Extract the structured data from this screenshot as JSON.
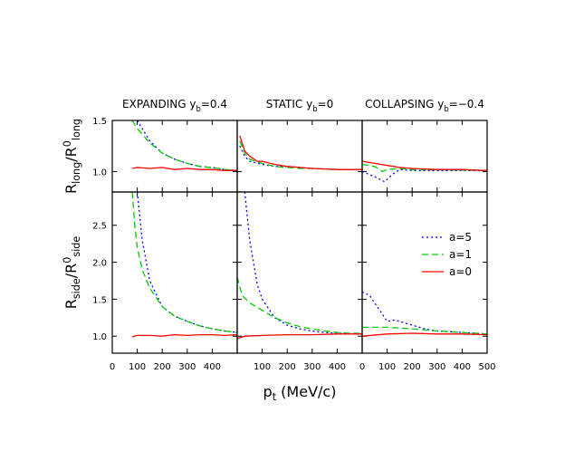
{
  "chart_data": [
    {
      "type": "line",
      "title": [
        {
          "text": "EXPANDING y"
        },
        {
          "sub": "b"
        },
        {
          "text": "=0.4"
        }
      ],
      "ylabel": [
        {
          "text": "R"
        },
        {
          "sub": "long"
        },
        {
          "text": "/R"
        },
        {
          "sup": "0"
        },
        {
          "sub": "long"
        }
      ],
      "xlim": [
        0,
        500
      ],
      "xticks": [
        0,
        100,
        200,
        300,
        400,
        500
      ],
      "xtick_labels": false,
      "ylim": [
        0.8,
        1.5
      ],
      "yticks": [
        {
          "value": 1,
          "label": "1.0"
        },
        {
          "value": 1.5,
          "label": "1.5"
        }
      ],
      "ytick_labels": true,
      "series": [
        {
          "color": "#0000ff",
          "style": "dotted",
          "x": [
            100,
            150,
            200,
            250,
            300,
            350,
            400,
            450,
            500
          ],
          "values": [
            1.5,
            1.3,
            1.18,
            1.12,
            1.08,
            1.05,
            1.04,
            1.02,
            1.01
          ]
        },
        {
          "color": "#00cc00",
          "style": "dashed",
          "x": [
            80,
            100,
            150,
            200,
            250,
            300,
            350,
            400,
            450,
            500
          ],
          "values": [
            1.5,
            1.42,
            1.28,
            1.18,
            1.12,
            1.08,
            1.05,
            1.04,
            1.02,
            1.01
          ]
        },
        {
          "color": "#ff0000",
          "style": "solid",
          "x": [
            80,
            100,
            150,
            200,
            250,
            300,
            350,
            400,
            450,
            500
          ],
          "values": [
            1.03,
            1.04,
            1.03,
            1.04,
            1.02,
            1.03,
            1.02,
            1.02,
            1.01,
            1.01
          ]
        }
      ]
    },
    {
      "type": "line",
      "title": [
        {
          "text": "STATIC y"
        },
        {
          "sub": "b"
        },
        {
          "text": "=0"
        }
      ],
      "xlim": [
        0,
        500
      ],
      "xticks": [
        0,
        100,
        200,
        300,
        400,
        500
      ],
      "xtick_labels": false,
      "ylim": [
        0.8,
        1.5
      ],
      "yticks": [
        1,
        1.5
      ],
      "ytick_labels": false,
      "series": [
        {
          "color": "#0000ff",
          "style": "dotted",
          "x": [
            10,
            30,
            50,
            100,
            150,
            200,
            250,
            300,
            400,
            500
          ],
          "values": [
            1.25,
            1.15,
            1.1,
            1.07,
            1.05,
            1.05,
            1.04,
            1.03,
            1.02,
            1.02
          ]
        },
        {
          "color": "#00cc00",
          "style": "dashed",
          "x": [
            10,
            30,
            50,
            100,
            150,
            200,
            250,
            300,
            400,
            500
          ],
          "values": [
            1.3,
            1.18,
            1.12,
            1.08,
            1.05,
            1.04,
            1.03,
            1.03,
            1.02,
            1.02
          ]
        },
        {
          "color": "#ff0000",
          "style": "solid",
          "x": [
            10,
            30,
            50,
            80,
            100,
            150,
            200,
            250,
            300,
            400,
            500
          ],
          "values": [
            1.35,
            1.2,
            1.15,
            1.1,
            1.1,
            1.07,
            1.05,
            1.04,
            1.03,
            1.02,
            1.02
          ]
        }
      ]
    },
    {
      "type": "line",
      "title": [
        {
          "text": "COLLAPSING y"
        },
        {
          "sub": "b"
        },
        {
          "text": "=−0.4"
        }
      ],
      "xlim": [
        0,
        500
      ],
      "xticks": [
        0,
        100,
        200,
        300,
        400,
        500
      ],
      "xtick_labels": false,
      "ylim": [
        0.8,
        1.5
      ],
      "yticks": [
        1,
        1.5
      ],
      "ytick_labels": false,
      "series": [
        {
          "color": "#0000ff",
          "style": "dotted",
          "x": [
            0,
            50,
            90,
            120,
            150,
            200,
            300,
            500
          ],
          "values": [
            1.0,
            0.95,
            0.9,
            0.97,
            1.02,
            1.01,
            1.01,
            1.01
          ]
        },
        {
          "color": "#00cc00",
          "style": "dashed",
          "x": [
            0,
            50,
            80,
            100,
            150,
            200,
            250,
            500
          ],
          "values": [
            1.07,
            1.05,
            1.0,
            1.02,
            1.03,
            1.02,
            1.02,
            1.01
          ]
        },
        {
          "color": "#ff0000",
          "style": "solid",
          "x": [
            0,
            50,
            100,
            150,
            200,
            300,
            400,
            500
          ],
          "values": [
            1.1,
            1.08,
            1.06,
            1.04,
            1.03,
            1.02,
            1.02,
            1.01
          ]
        }
      ]
    },
    {
      "type": "line",
      "ylabel": [
        {
          "text": "R"
        },
        {
          "sub": "side"
        },
        {
          "text": "/R"
        },
        {
          "sup": "0"
        },
        {
          "sub": "side"
        }
      ],
      "xlim": [
        0,
        500
      ],
      "xticks": [
        0,
        100,
        200,
        300,
        400
      ],
      "xtick_labels": true,
      "ylim": [
        0.77,
        2.95
      ],
      "yticks": [
        {
          "value": 1,
          "label": "1.0"
        },
        {
          "value": 1.5,
          "label": "1.5"
        },
        {
          "value": 2,
          "label": "2.0"
        },
        {
          "value": 2.5,
          "label": "2.5"
        }
      ],
      "ytick_labels": true,
      "series": [
        {
          "color": "#0000ff",
          "style": "dotted",
          "x": [
            100,
            120,
            150,
            200,
            250,
            300,
            350,
            400,
            450,
            500
          ],
          "values": [
            2.95,
            2.3,
            1.75,
            1.4,
            1.27,
            1.2,
            1.14,
            1.1,
            1.07,
            1.05
          ]
        },
        {
          "color": "#00cc00",
          "style": "dashed",
          "x": [
            80,
            90,
            100,
            120,
            150,
            200,
            250,
            300,
            350,
            400,
            450,
            500
          ],
          "values": [
            2.95,
            2.5,
            2.2,
            1.9,
            1.65,
            1.4,
            1.27,
            1.2,
            1.14,
            1.1,
            1.07,
            1.05
          ]
        },
        {
          "color": "#ff0000",
          "style": "solid",
          "x": [
            80,
            100,
            150,
            200,
            250,
            300,
            350,
            400,
            450,
            500
          ],
          "values": [
            0.99,
            1.01,
            1.01,
            1.0,
            1.02,
            1.01,
            1.02,
            1.02,
            1.01,
            1.02
          ]
        }
      ]
    },
    {
      "type": "line",
      "xlabel": [
        {
          "text": "p"
        },
        {
          "sub": "t"
        },
        {
          "text": " (MeV/c)"
        }
      ],
      "xlim": [
        0,
        500
      ],
      "xticks": [
        100,
        200,
        300,
        400
      ],
      "xtick_labels": true,
      "ylim": [
        0.77,
        2.95
      ],
      "yticks": [
        1,
        1.5,
        2,
        2.5
      ],
      "ytick_labels": false,
      "series": [
        {
          "color": "#0000ff",
          "style": "dotted",
          "x": [
            30,
            50,
            80,
            100,
            150,
            200,
            250,
            300,
            350,
            400,
            500
          ],
          "values": [
            2.95,
            2.3,
            1.7,
            1.5,
            1.25,
            1.15,
            1.1,
            1.07,
            1.05,
            1.04,
            1.03
          ]
        },
        {
          "color": "#00cc00",
          "style": "dashed",
          "x": [
            0,
            20,
            50,
            100,
            150,
            200,
            250,
            300,
            350,
            400,
            450,
            500
          ],
          "values": [
            1.8,
            1.55,
            1.45,
            1.35,
            1.25,
            1.18,
            1.13,
            1.1,
            1.07,
            1.05,
            1.04,
            1.04
          ]
        },
        {
          "color": "#ff0000",
          "style": "solid",
          "x": [
            0,
            30,
            100,
            200,
            300,
            400,
            500
          ],
          "values": [
            0.97,
            1.0,
            1.01,
            1.02,
            1.02,
            1.03,
            1.03
          ]
        }
      ]
    },
    {
      "type": "line",
      "xlim": [
        0,
        500
      ],
      "xticks": [
        0,
        100,
        200,
        300,
        400,
        500
      ],
      "xtick_labels": true,
      "ylim": [
        0.77,
        2.95
      ],
      "yticks": [
        1,
        1.5,
        2,
        2.5
      ],
      "ytick_labels": false,
      "legend": "upper right",
      "series": [
        {
          "name": "a=5",
          "color": "#0000ff",
          "style": "dotted",
          "x": [
            0,
            30,
            100,
            130,
            200,
            250,
            300,
            400,
            500
          ],
          "values": [
            1.6,
            1.55,
            1.2,
            1.22,
            1.15,
            1.1,
            1.07,
            1.05,
            1.03
          ]
        },
        {
          "name": "a=1",
          "color": "#00cc00",
          "style": "dashed",
          "x": [
            0,
            100,
            200,
            300,
            400,
            500
          ],
          "values": [
            1.12,
            1.12,
            1.1,
            1.07,
            1.05,
            1.03
          ]
        },
        {
          "name": "a=0",
          "color": "#ff0000",
          "style": "solid",
          "x": [
            0,
            100,
            200,
            300,
            400,
            500
          ],
          "values": [
            1.0,
            1.03,
            1.04,
            1.03,
            1.03,
            1.02
          ]
        }
      ]
    }
  ]
}
